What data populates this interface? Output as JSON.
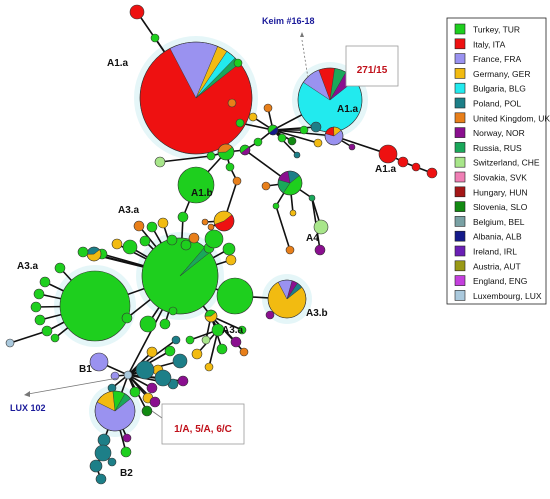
{
  "colors": {
    "turkey": "#1ecf1e",
    "italy": "#ee1111",
    "france": "#9a92f0",
    "germany": "#f2bb11",
    "bulgaria": "#22eaee",
    "poland": "#1d7f88",
    "uk": "#e87f1a",
    "norway": "#8a0f8f",
    "russia": "#1aa85a",
    "switzerland": "#a8e68a",
    "slovakia": "#f07fb5",
    "hungary": "#a41717",
    "slovenia": "#128a12",
    "belgium": "#79a1a4",
    "albania": "#141a8a",
    "ireland": "#6a1fb5",
    "austria": "#9a9a16",
    "england": "#c43fdd",
    "luxembourg": "#aac9dd"
  },
  "legend": [
    {
      "label": "Turkey, TUR",
      "color": "#1ecf1e"
    },
    {
      "label": "Italy, ITA",
      "color": "#ee1111"
    },
    {
      "label": "France, FRA",
      "color": "#9a92f0"
    },
    {
      "label": "Germany, GER",
      "color": "#f2bb11"
    },
    {
      "label": "Bulgaria, BLG",
      "color": "#22eaee"
    },
    {
      "label": "Poland, POL",
      "color": "#1d7f88"
    },
    {
      "label": "United Kingdom, UK",
      "color": "#e87f1a"
    },
    {
      "label": "Norway, NOR",
      "color": "#8a0f8f"
    },
    {
      "label": "Russia, RUS",
      "color": "#1aa85a"
    },
    {
      "label": "Switzerland, CHE",
      "color": "#a8e68a"
    },
    {
      "label": "Slovakia, SVK",
      "color": "#f07fb5"
    },
    {
      "label": "Hungary, HUN",
      "color": "#a41717"
    },
    {
      "label": "Slovenia, SLO",
      "color": "#128a12"
    },
    {
      "label": "Belgium, BEL",
      "color": "#79a1a4"
    },
    {
      "label": "Albania, ALB",
      "color": "#141a8a"
    },
    {
      "label": "Ireland, IRL",
      "color": "#6a1fb5"
    },
    {
      "label": "Austria, AUT",
      "color": "#9a9a16"
    },
    {
      "label": "England, ENG",
      "color": "#c43fdd"
    },
    {
      "label": "Luxembourg, LUX",
      "color": "#aac9dd"
    }
  ],
  "labels": {
    "a1a_main": "A1.a",
    "a1a_bulgaria": "A1.a",
    "a1a_right": "A1.a",
    "a1b": "A1.b",
    "a4": "A4",
    "a3a_top": "A3.a",
    "a3a_left": "A3.a",
    "a3a_bottom": "A3.a",
    "a3b": "A3.b",
    "b1": "B1",
    "b2": "B2",
    "keim": "Keim #16-18",
    "box_271": "271/15",
    "lux102": "LUX 102",
    "box_1a": "1/A, 5/A, 6/C"
  }
}
